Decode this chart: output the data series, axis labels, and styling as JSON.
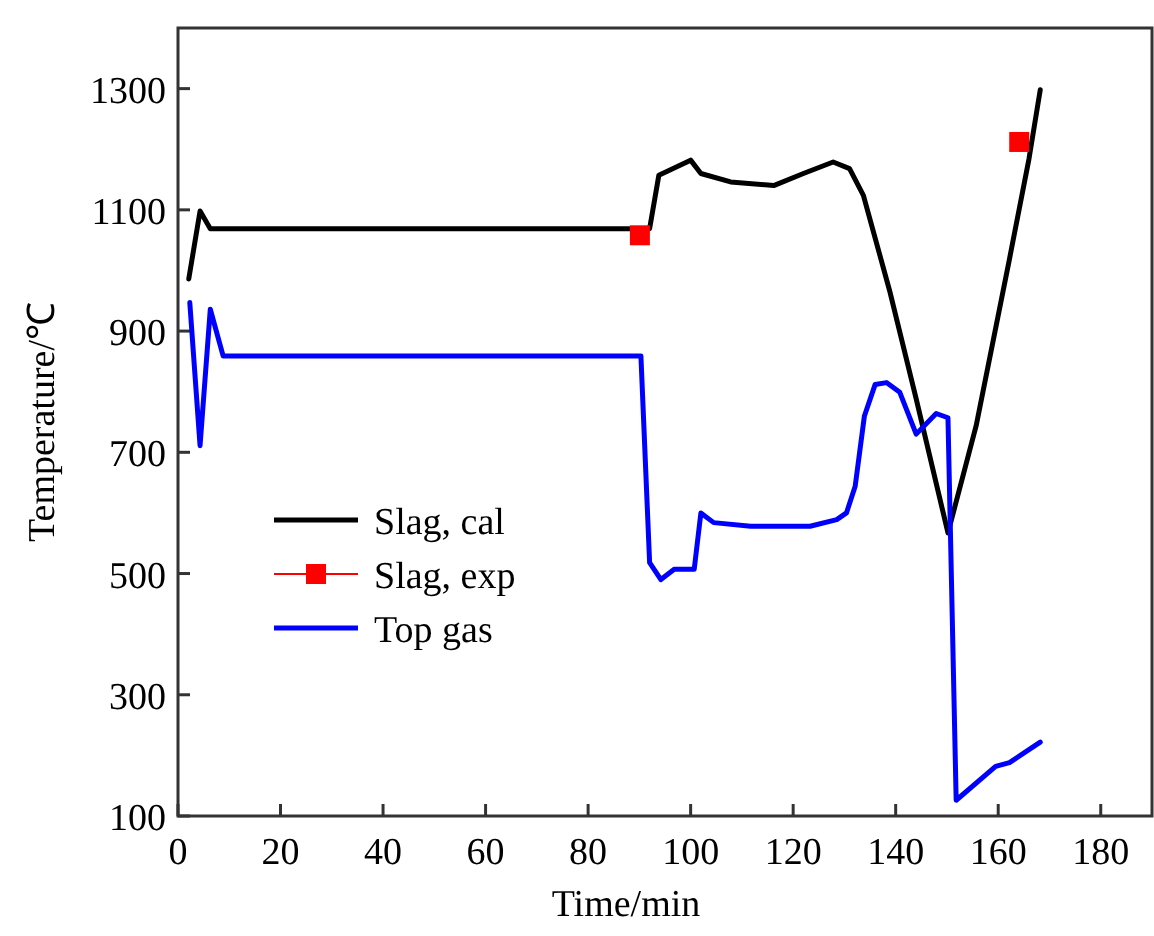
{
  "chart_data": {
    "type": "line",
    "xlabel": "Time/min",
    "ylabel": "Temperature/℃",
    "xlim": [
      0,
      190
    ],
    "ylim": [
      100,
      1400
    ],
    "xticks": [
      0,
      20,
      40,
      60,
      80,
      100,
      120,
      140,
      160,
      180
    ],
    "yticks": [
      100,
      300,
      500,
      700,
      900,
      1100,
      1300
    ],
    "grid": false,
    "legend": "left",
    "series": [
      {
        "name": "Slag, cal",
        "color": "#000000",
        "marker": "none",
        "x": [
          2.1,
          4.3,
          6.3,
          92,
          93.8,
          100,
          102,
          107.8,
          116.2,
          122,
          127.8,
          131,
          133.7,
          138.9,
          144,
          150.2,
          155.7,
          162.2,
          166,
          168.2
        ],
        "values": [
          986,
          1098,
          1069,
          1069,
          1157,
          1182,
          1160,
          1146,
          1140,
          1160,
          1179,
          1168,
          1124,
          964,
          788,
          567,
          744,
          1019,
          1184,
          1298
        ]
      },
      {
        "name": "Slag, exp",
        "color": "#ff0000",
        "type": "scatter",
        "marker": "square",
        "x": [
          90.1,
          164.1
        ],
        "values": [
          1058,
          1212
        ]
      },
      {
        "name": "Top gas",
        "color": "#0000ff",
        "marker": "none",
        "x": [
          2.3,
          4.3,
          6.3,
          8.8,
          90.3,
          92,
          94.2,
          96.8,
          100.7,
          102,
          104.5,
          111.7,
          123.3,
          128.5,
          130.4,
          132.1,
          133.9,
          136,
          138.2,
          140.8,
          144,
          147.9,
          150.2,
          151.8,
          159.5,
          162.2,
          168.2
        ],
        "values": [
          947,
          711,
          936,
          859,
          859,
          518,
          490,
          507,
          507,
          600,
          584,
          578,
          578,
          589,
          600,
          644,
          760,
          812,
          815,
          799,
          730,
          764,
          757,
          126,
          182,
          188,
          222
        ]
      }
    ]
  }
}
